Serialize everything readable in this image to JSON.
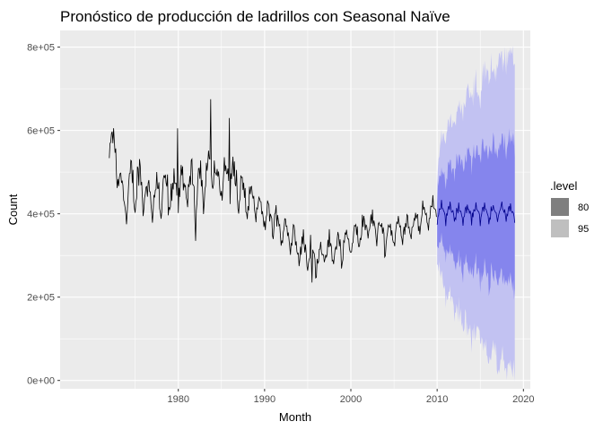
{
  "chart_data": {
    "type": "line",
    "title": "Pronóstico de producción de ladrillos con Seasonal Naïve",
    "xlabel": "Month",
    "ylabel": "Count",
    "xlim": [
      1966.3,
      2020.8
    ],
    "ylim": [
      -20000,
      840000
    ],
    "x_ticks": [
      1980,
      1990,
      2000,
      2010,
      2020
    ],
    "x_tick_labels": [
      "1980",
      "1990",
      "2000",
      "2010",
      "2020"
    ],
    "y_ticks": [
      0,
      200000,
      400000,
      600000,
      800000
    ],
    "y_tick_labels": [
      "0e+00",
      "2e+05",
      "4e+05",
      "6e+05",
      "8e+05"
    ],
    "grid": true,
    "colors": {
      "panel": "#ebebeb",
      "grid": "#ffffff",
      "history_line": "#000000",
      "forecast_line": "#00008b",
      "band95": "#c2c2f2",
      "band80": "#8585ed",
      "legend80": "#7f7f7f",
      "legend95": "#bfbfbf"
    },
    "legend": {
      "title": ".level",
      "position": "right",
      "entries": [
        "80",
        "95"
      ]
    },
    "history_anchors": [
      [
        1972.0,
        580000
      ],
      [
        1972.5,
        545000
      ],
      [
        1973.0,
        510000
      ],
      [
        1973.5,
        440000
      ],
      [
        1974.0,
        430000
      ],
      [
        1974.5,
        470000
      ],
      [
        1975.0,
        455000
      ],
      [
        1975.5,
        465000
      ],
      [
        1976.0,
        455000
      ],
      [
        1976.5,
        440000
      ],
      [
        1977.0,
        435000
      ],
      [
        1978.0,
        440000
      ],
      [
        1979.0,
        445000
      ],
      [
        1980.0,
        460000
      ],
      [
        1981.0,
        455000
      ],
      [
        1982.0,
        470000
      ],
      [
        1983.0,
        475000
      ],
      [
        1983.8,
        510000
      ],
      [
        1984.5,
        470000
      ],
      [
        1985.5,
        480000
      ],
      [
        1986.0,
        505000
      ],
      [
        1986.5,
        470000
      ],
      [
        1987.0,
        450000
      ],
      [
        1988.0,
        430000
      ],
      [
        1989.0,
        415000
      ],
      [
        1990.0,
        395000
      ],
      [
        1991.0,
        380000
      ],
      [
        1992.0,
        365000
      ],
      [
        1993.0,
        345000
      ],
      [
        1994.0,
        320000
      ],
      [
        1995.0,
        305000
      ],
      [
        1995.6,
        290000
      ],
      [
        1996.5,
        300000
      ],
      [
        1997.5,
        305000
      ],
      [
        1998.5,
        315000
      ],
      [
        2000.0,
        330000
      ],
      [
        2001.0,
        355000
      ],
      [
        2002.0,
        370000
      ],
      [
        2003.0,
        365000
      ],
      [
        2004.0,
        345000
      ],
      [
        2005.0,
        355000
      ],
      [
        2006.0,
        360000
      ],
      [
        2007.0,
        375000
      ],
      [
        2008.0,
        380000
      ],
      [
        2009.0,
        400000
      ],
      [
        2009.9,
        410000
      ]
    ],
    "forecast_start": 2010.0,
    "forecast_end": 2019.0,
    "forecast_level": 400000,
    "forecast_seasonal_amplitude": 50000,
    "interval_80_halfwidth_range": [
      55000,
      175000
    ],
    "interval_95_halfwidth_range": [
      90000,
      385000
    ]
  }
}
